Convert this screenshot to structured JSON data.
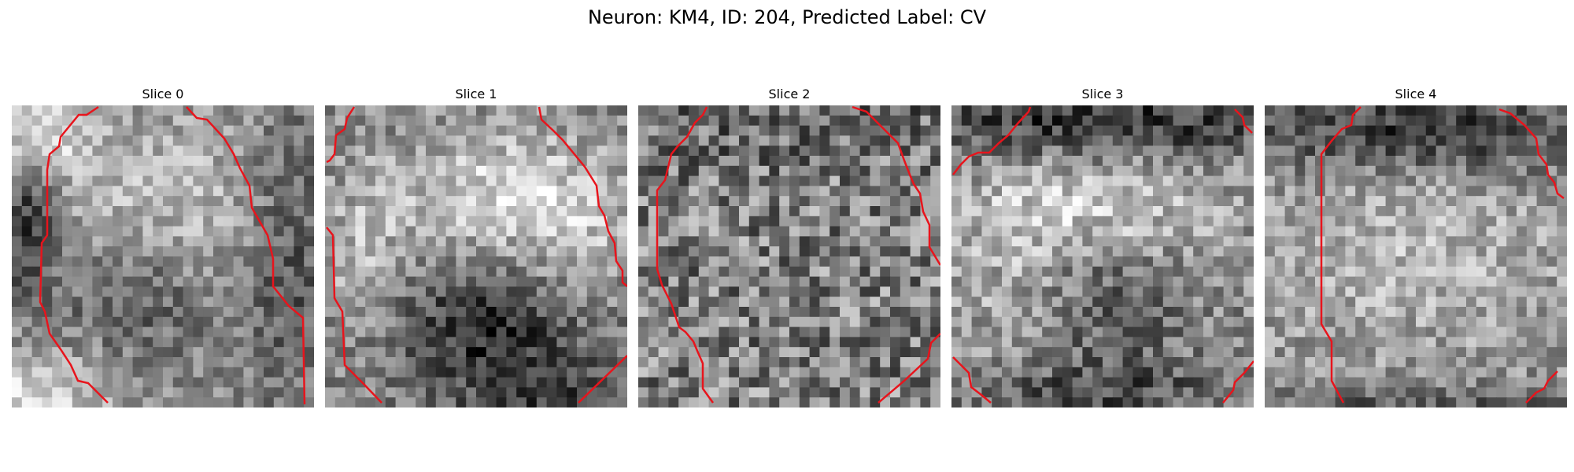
{
  "figure": {
    "title": "Neuron: KM4, ID: 204, Predicted Label: CV"
  },
  "colors": {
    "contour": "#e8141c",
    "background": "#ffffff"
  },
  "colormap": "gray",
  "slices": [
    {
      "label": "Slice 0",
      "description": "grayscale patch, bright ring with darker center, red contour left and right edges"
    },
    {
      "label": "Slice 1",
      "description": "grayscale patch, bright blob upper center, dark lower center, red contours on edges"
    },
    {
      "label": "Slice 2",
      "description": "noisy grayscale patch with red contours on left and right edges"
    },
    {
      "label": "Slice 3",
      "description": "grayscale patch with dark top band, bright center, red contour corners"
    },
    {
      "label": "Slice 4",
      "description": "grayscale patch with dark top band, lighter body, red contours left and corners"
    }
  ]
}
